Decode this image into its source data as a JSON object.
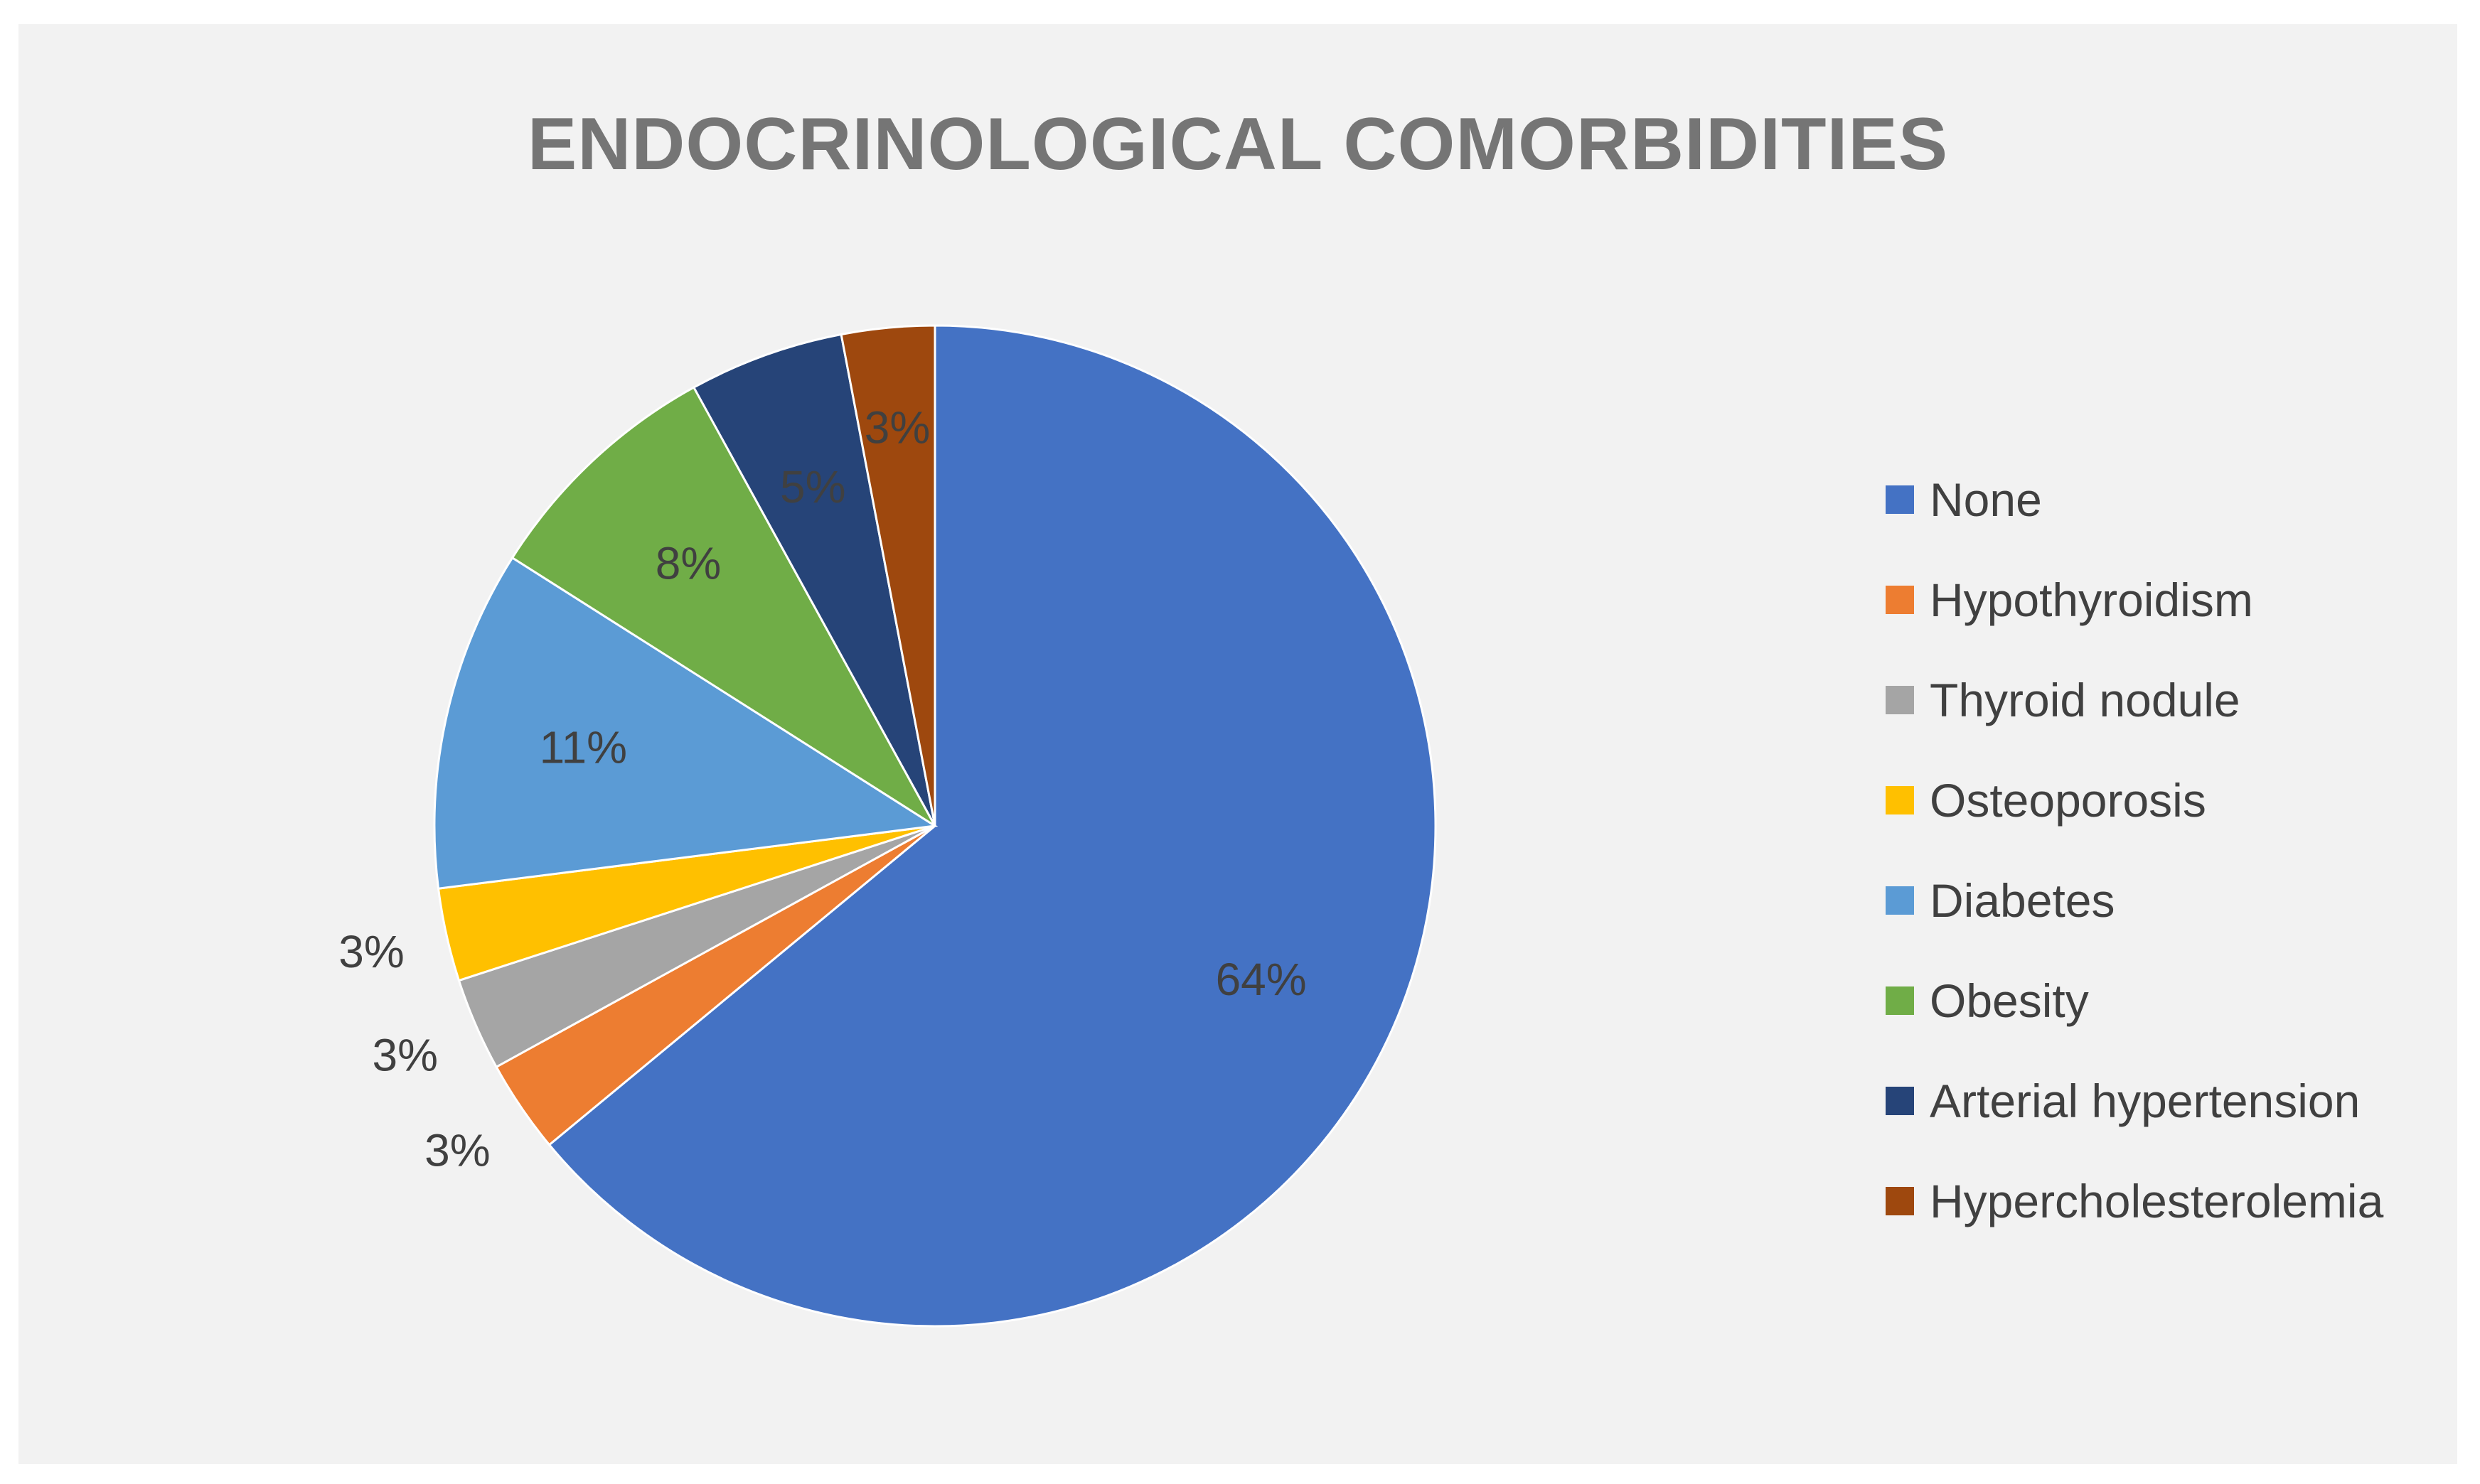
{
  "chart_data": {
    "type": "pie",
    "title": "ENDOCRINOLOGICAL COMORBIDITIES",
    "categories": [
      "None",
      "Hypothyroidism",
      "Thyroid nodule",
      "Osteoporosis",
      "Diabetes",
      "Obesity",
      "Arterial hypertension",
      "Hypercholesterolemia"
    ],
    "values": [
      64,
      3,
      3,
      3,
      11,
      8,
      5,
      3
    ],
    "labels": [
      "64%",
      "3%",
      "3%",
      "3%",
      "11%",
      "8%",
      "5%",
      "3%"
    ],
    "colors": [
      "#4472c4",
      "#ed7d31",
      "#a5a5a5",
      "#ffc000",
      "#5b9bd5",
      "#70ad47",
      "#264478",
      "#9e480e"
    ],
    "legend_position": "right",
    "start_angle_deg": 0,
    "direction": "clockwise"
  }
}
